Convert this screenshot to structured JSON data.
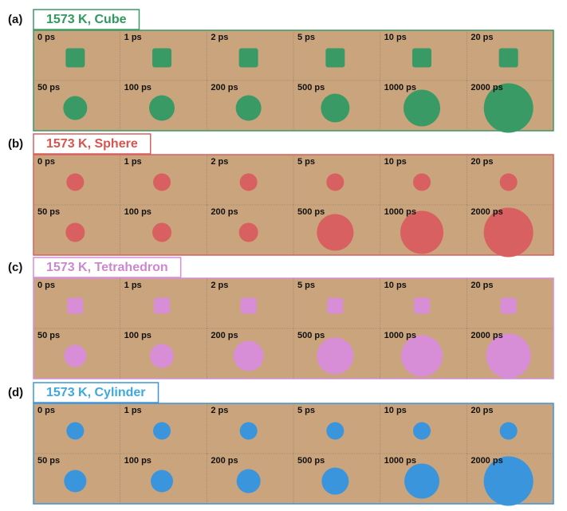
{
  "panels": [
    {
      "label": "(a)",
      "title": "1573 K, Cube",
      "frames": [
        "0 ps",
        "1 ps",
        "2 ps",
        "5 ps",
        "10 ps",
        "20 ps",
        "50 ps",
        "100 ps",
        "200 ps",
        "500 ps",
        "1000 ps",
        "2000 ps"
      ]
    },
    {
      "label": "(b)",
      "title": "1573 K, Sphere",
      "frames": [
        "0 ps",
        "1 ps",
        "2 ps",
        "5 ps",
        "10 ps",
        "20 ps",
        "50 ps",
        "100 ps",
        "200 ps",
        "500 ps",
        "1000 ps",
        "2000 ps"
      ]
    },
    {
      "label": "(c)",
      "title": "1573 K, Tetrahedron",
      "frames": [
        "0 ps",
        "1 ps",
        "2 ps",
        "5 ps",
        "10 ps",
        "20 ps",
        "50 ps",
        "100 ps",
        "200 ps",
        "500 ps",
        "1000 ps",
        "2000 ps"
      ]
    },
    {
      "label": "(d)",
      "title": "1573 K, Cylinder",
      "frames": [
        "0 ps",
        "1 ps",
        "2 ps",
        "5 ps",
        "10 ps",
        "20 ps",
        "50 ps",
        "100 ps",
        "200 ps",
        "500 ps",
        "1000 ps",
        "2000 ps"
      ]
    }
  ]
}
